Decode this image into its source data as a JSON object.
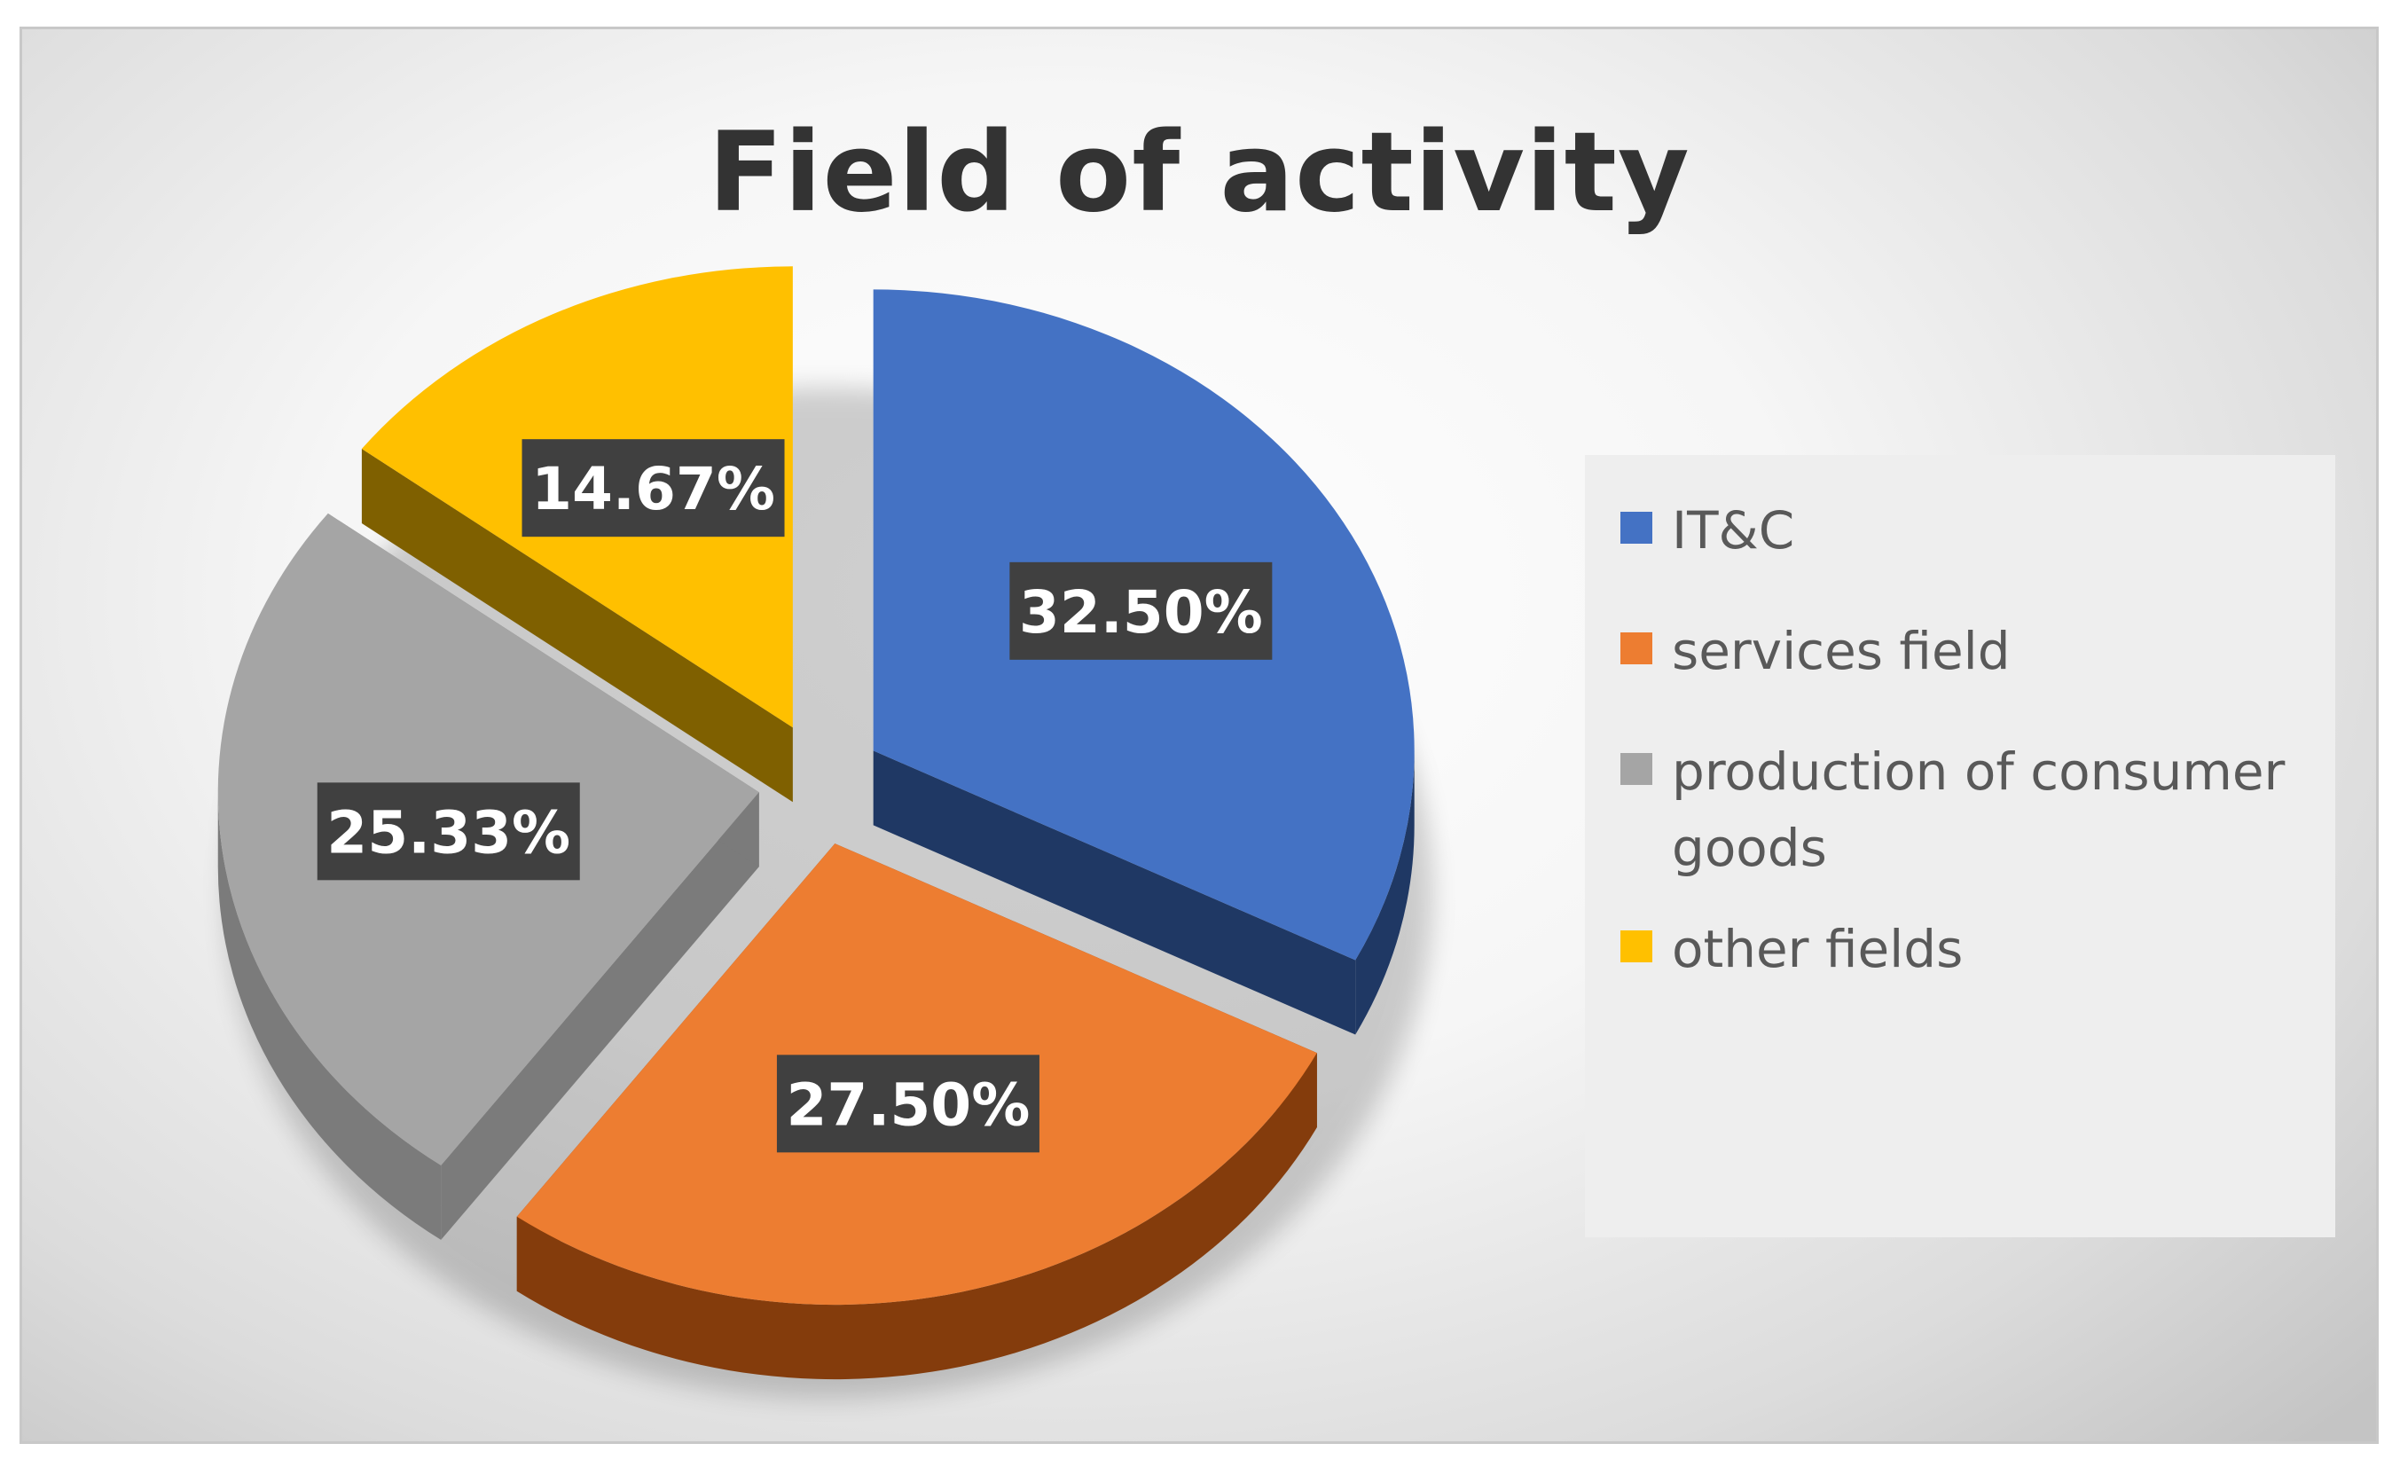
{
  "chart_data": {
    "type": "pie",
    "title": "Field of activity",
    "categories": [
      "IT&C",
      "services field",
      "production of consumer goods",
      "other fields"
    ],
    "values": [
      32.5,
      27.5,
      25.33,
      14.67
    ],
    "data_labels": [
      "32.50%",
      "27.50%",
      "25.33%",
      "14.67%"
    ],
    "colors": [
      "#4472c4",
      "#ed7d31",
      "#a5a5a5",
      "#ffc000"
    ],
    "side_colors": [
      "#1f3864",
      "#843c0c",
      "#7b7b7b",
      "#7f6000"
    ],
    "legend_position": "right",
    "style": "3d-exploded"
  }
}
